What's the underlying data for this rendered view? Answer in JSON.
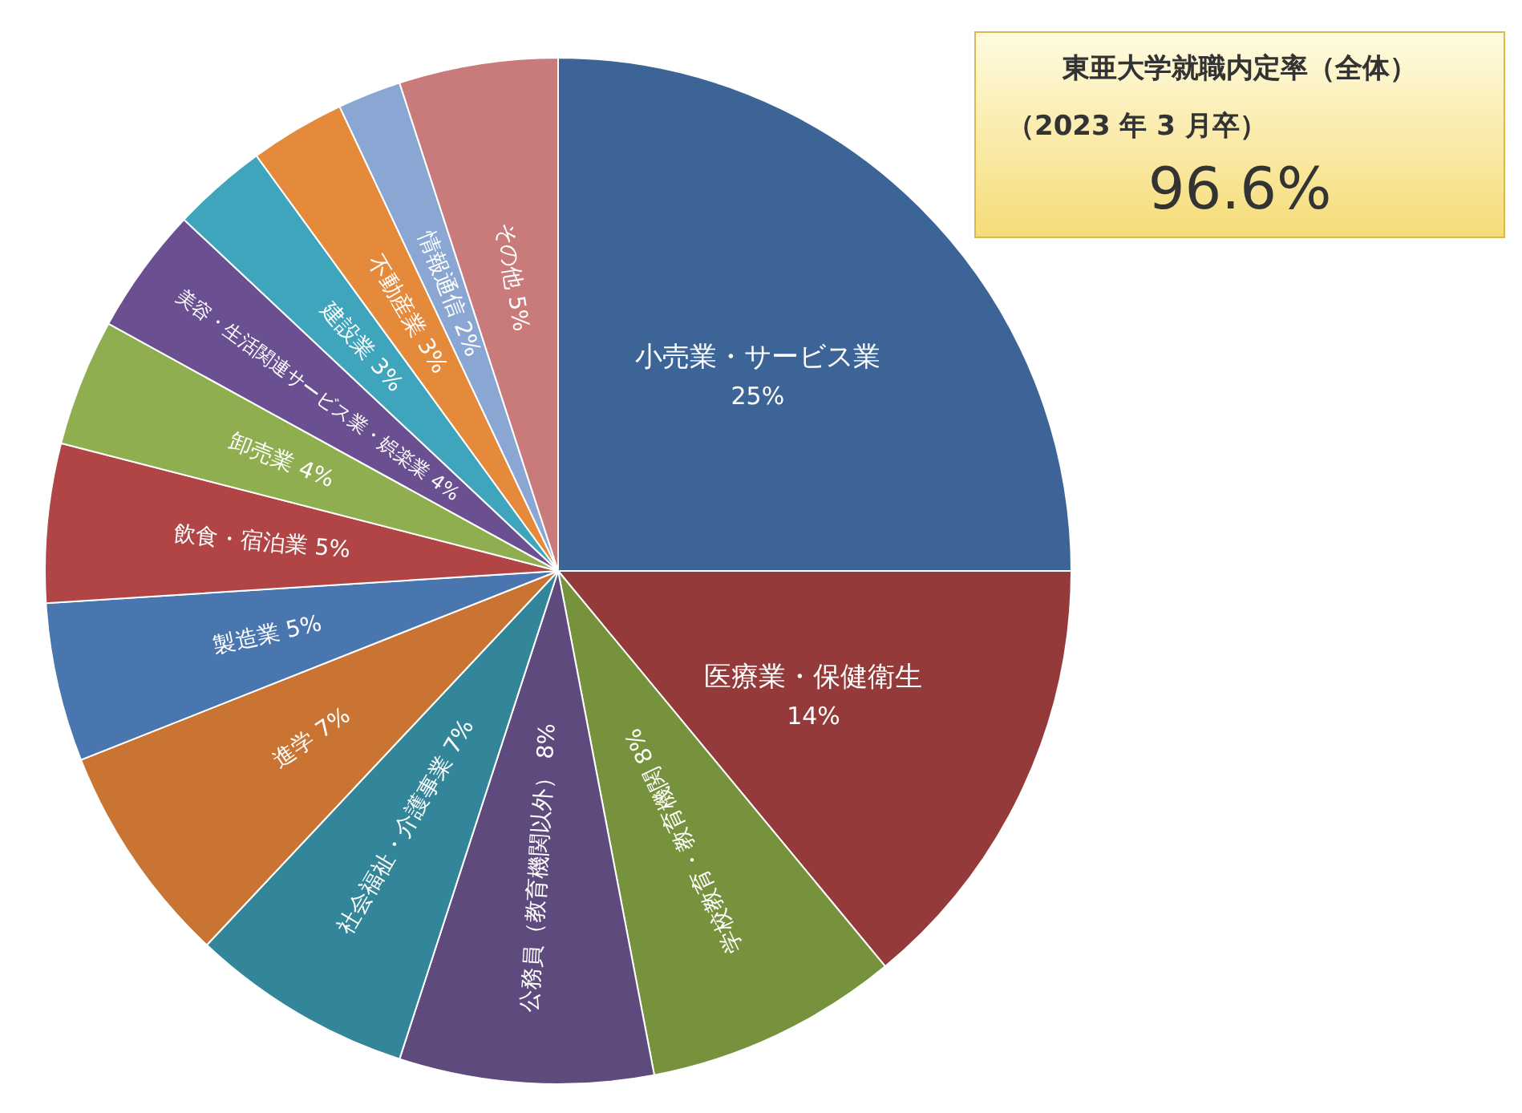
{
  "chart_data": {
    "type": "pie",
    "title": "東亜大学就職内定率（全体）",
    "subtitle": "（2023 年 3 月卒）",
    "annotations": [
      "96.6%"
    ],
    "categories": [
      "小売業・サービス業",
      "医療業・保健衛生",
      "学校教育・教育機関",
      "公務員（教育機関以外）",
      "社会福祉・介護事業",
      "進学",
      "製造業",
      "飲食・宿泊業",
      "卸売業",
      "美容・生活関連サービス業・娯楽業",
      "建設業",
      "不動産業",
      "情報通信",
      "その他"
    ],
    "values": [
      25,
      14,
      8,
      8,
      7,
      7,
      5,
      5,
      4,
      4,
      3,
      3,
      2,
      5
    ],
    "value_labels": [
      "25%",
      "14%",
      "8%",
      "8%",
      "7%",
      "7%",
      "5%",
      "5%",
      "4%",
      "4%",
      "3%",
      "3%",
      "2%",
      "5%"
    ],
    "colors": [
      "#3d6496",
      "#953a3a",
      "#77923c",
      "#5f4a7d",
      "#33869a",
      "#c97433",
      "#4a76b0",
      "#b14545",
      "#8fae4f",
      "#6a5090",
      "#3fa5bd",
      "#e48a3a",
      "#8aa6d2",
      "#c97a7a"
    ]
  }
}
